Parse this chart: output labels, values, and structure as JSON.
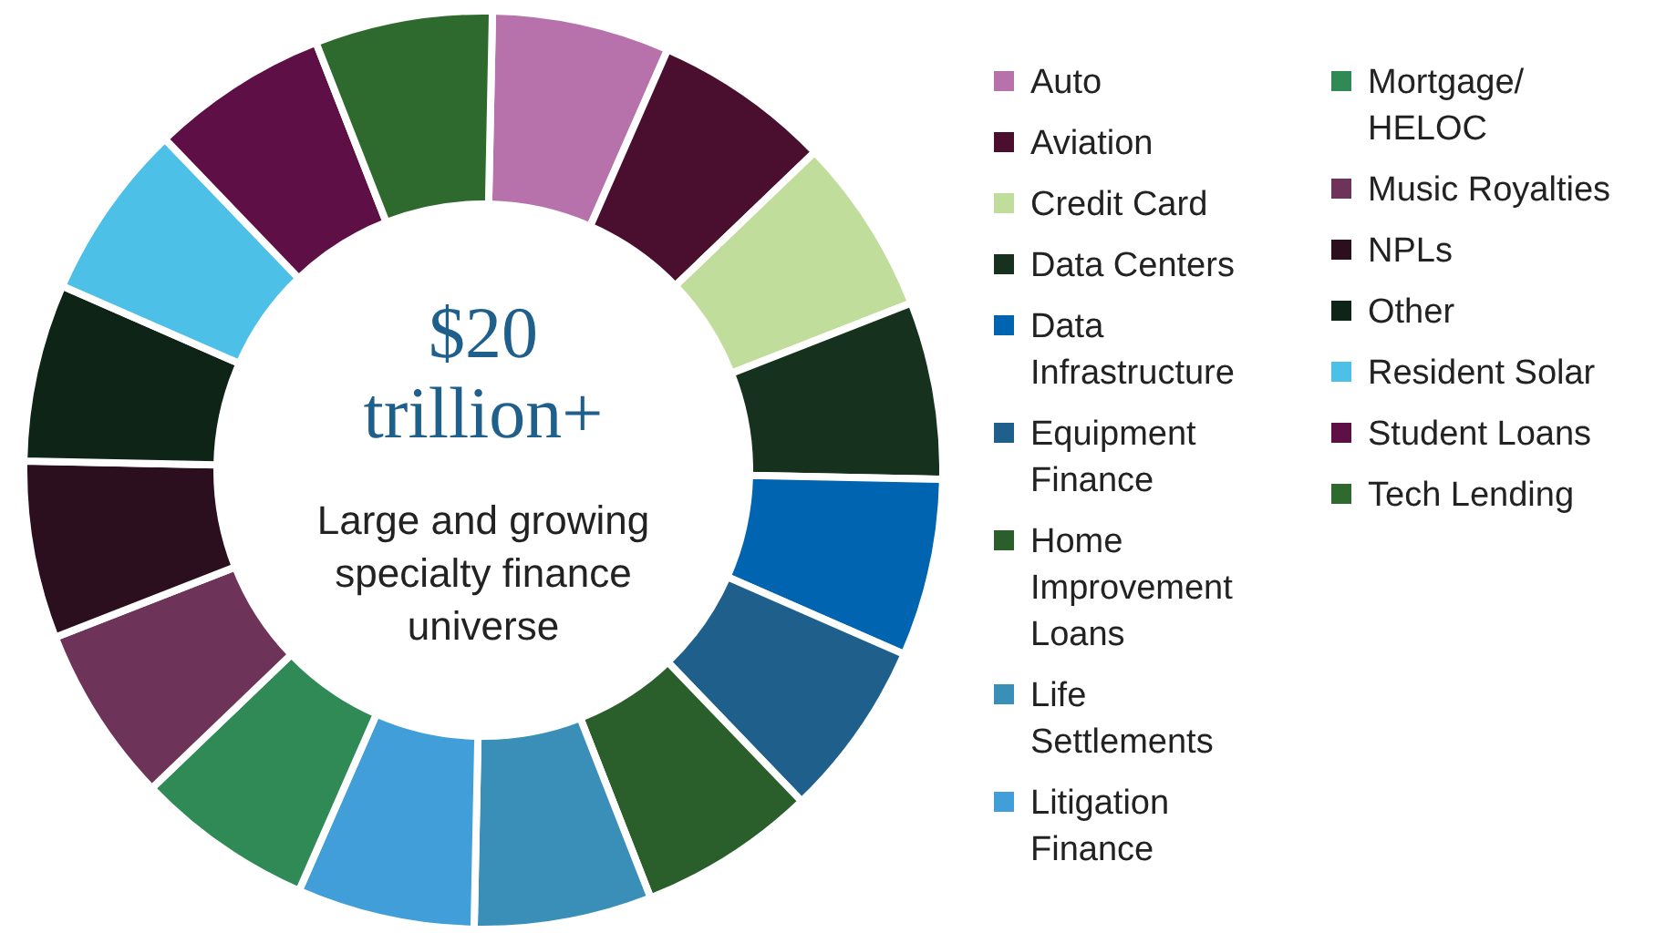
{
  "chart_data": {
    "type": "donut",
    "title": "$20 trillion+",
    "subtitle": "Large and growing specialty finance universe",
    "categories": [
      "Auto",
      "Aviation",
      "Credit Card",
      "Data Centers",
      "Data Infrastructure",
      "Equipment Finance",
      "Home Improvement Loans",
      "Life Settlements",
      "Litigation Finance",
      "Mortgage/HELOC",
      "Music Royalties",
      "NPLs",
      "Other",
      "Resident Solar",
      "Student Loans",
      "Tech Lending"
    ],
    "values": [
      6.25,
      6.25,
      6.25,
      6.25,
      6.25,
      6.25,
      6.25,
      6.25,
      6.25,
      6.25,
      6.25,
      6.25,
      6.25,
      6.25,
      6.25,
      6.25
    ],
    "colors": [
      "#b772ab",
      "#4a0f2e",
      "#c1dd9c",
      "#16321f",
      "#0064b0",
      "#1f5f8b",
      "#2a5e2b",
      "#3a8fb9",
      "#419ed9",
      "#2f8a55",
      "#6d3358",
      "#2b0f1e",
      "#0e2416",
      "#4cc0e6",
      "#5e0f45",
      "#2e6a2e"
    ],
    "legend": "right"
  }
}
